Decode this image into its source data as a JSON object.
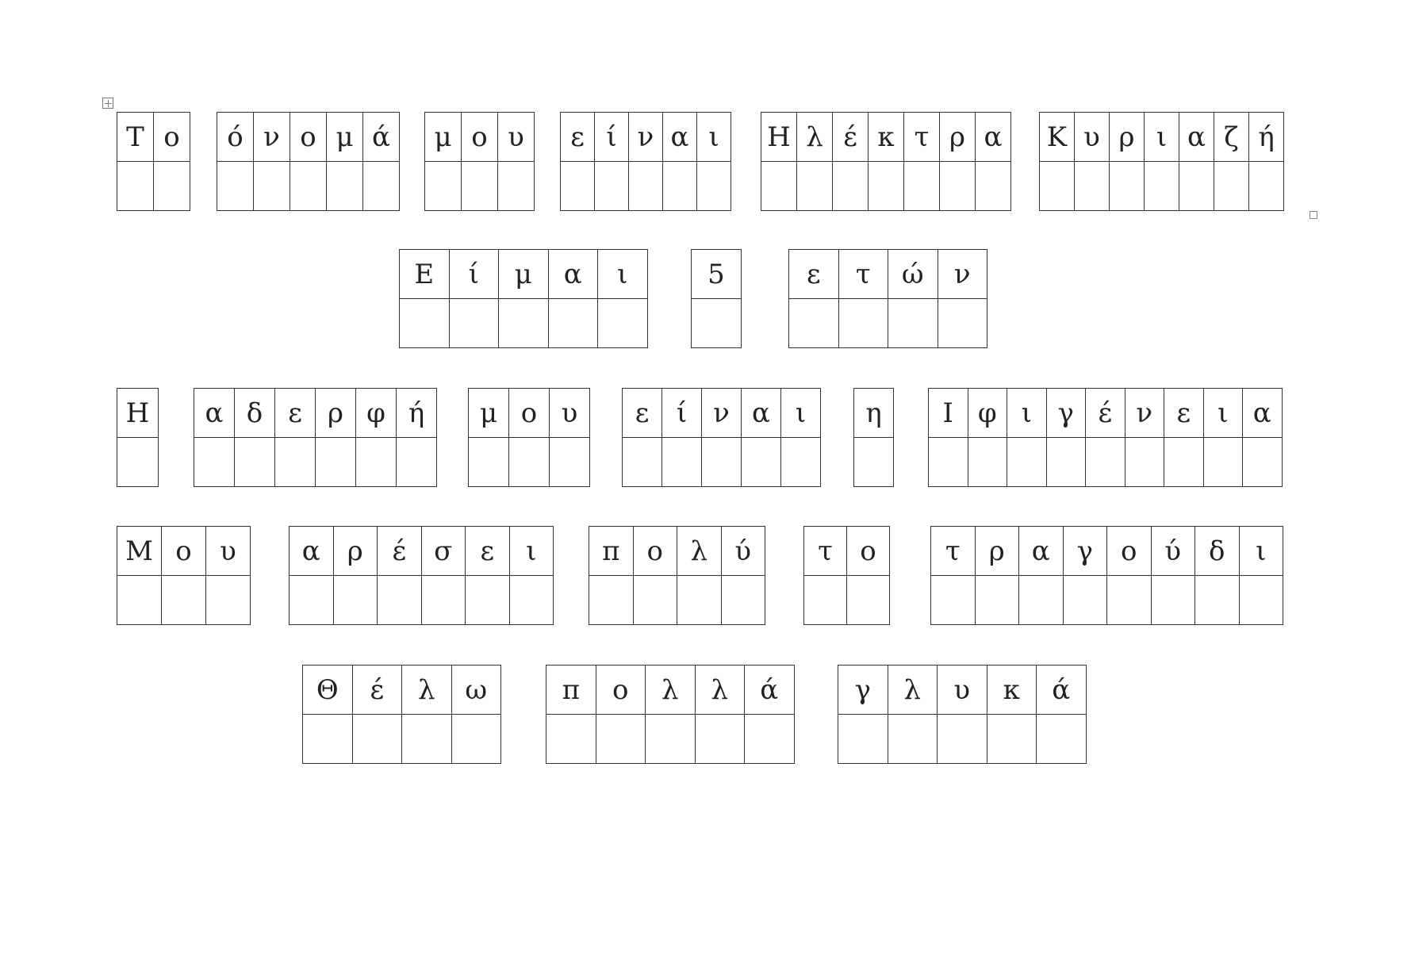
{
  "rows": [
    {
      "words": [
        {
          "letters": [
            "Τ",
            "ο"
          ]
        },
        {
          "letters": [
            "ό",
            "ν",
            "ο",
            "μ",
            "ά"
          ]
        },
        {
          "letters": [
            "μ",
            "ο",
            "υ"
          ]
        },
        {
          "letters": [
            "ε",
            "ί",
            "ν",
            "α",
            "ι"
          ]
        },
        {
          "letters": [
            "Η",
            "λ",
            "έ",
            "κ",
            "τ",
            "ρ",
            "α"
          ]
        },
        {
          "letters": [
            "Κ",
            "υ",
            "ρ",
            "ι",
            "α",
            "ζ",
            "ή"
          ]
        }
      ]
    },
    {
      "words": [
        {
          "letters": [
            "Ε",
            "ί",
            "μ",
            "α",
            "ι"
          ]
        },
        {
          "letters": [
            "5"
          ]
        },
        {
          "letters": [
            "ε",
            "τ",
            "ώ",
            "ν"
          ]
        }
      ]
    },
    {
      "words": [
        {
          "letters": [
            "Η"
          ]
        },
        {
          "letters": [
            "α",
            "δ",
            "ε",
            "ρ",
            "φ",
            "ή"
          ]
        },
        {
          "letters": [
            "μ",
            "ο",
            "υ"
          ]
        },
        {
          "letters": [
            "ε",
            "ί",
            "ν",
            "α",
            "ι"
          ]
        },
        {
          "letters": [
            "η"
          ]
        },
        {
          "letters": [
            "Ι",
            "φ",
            "ι",
            "γ",
            "έ",
            "ν",
            "ε",
            "ι",
            "α"
          ]
        }
      ]
    },
    {
      "words": [
        {
          "letters": [
            "Μ",
            "ο",
            "υ"
          ]
        },
        {
          "letters": [
            "α",
            "ρ",
            "έ",
            "σ",
            "ε",
            "ι"
          ]
        },
        {
          "letters": [
            "π",
            "ο",
            "λ",
            "ύ"
          ]
        },
        {
          "letters": [
            "τ",
            "ο"
          ]
        },
        {
          "letters": [
            "τ",
            "ρ",
            "α",
            "γ",
            "ο",
            "ύ",
            "δ",
            "ι"
          ]
        }
      ]
    },
    {
      "words": [
        {
          "letters": [
            "Θ",
            "έ",
            "λ",
            "ω"
          ]
        },
        {
          "letters": [
            "π",
            "ο",
            "λ",
            "λ",
            "ά"
          ]
        },
        {
          "letters": [
            "γ",
            "λ",
            "υ",
            "κ",
            "ά"
          ]
        }
      ]
    }
  ]
}
